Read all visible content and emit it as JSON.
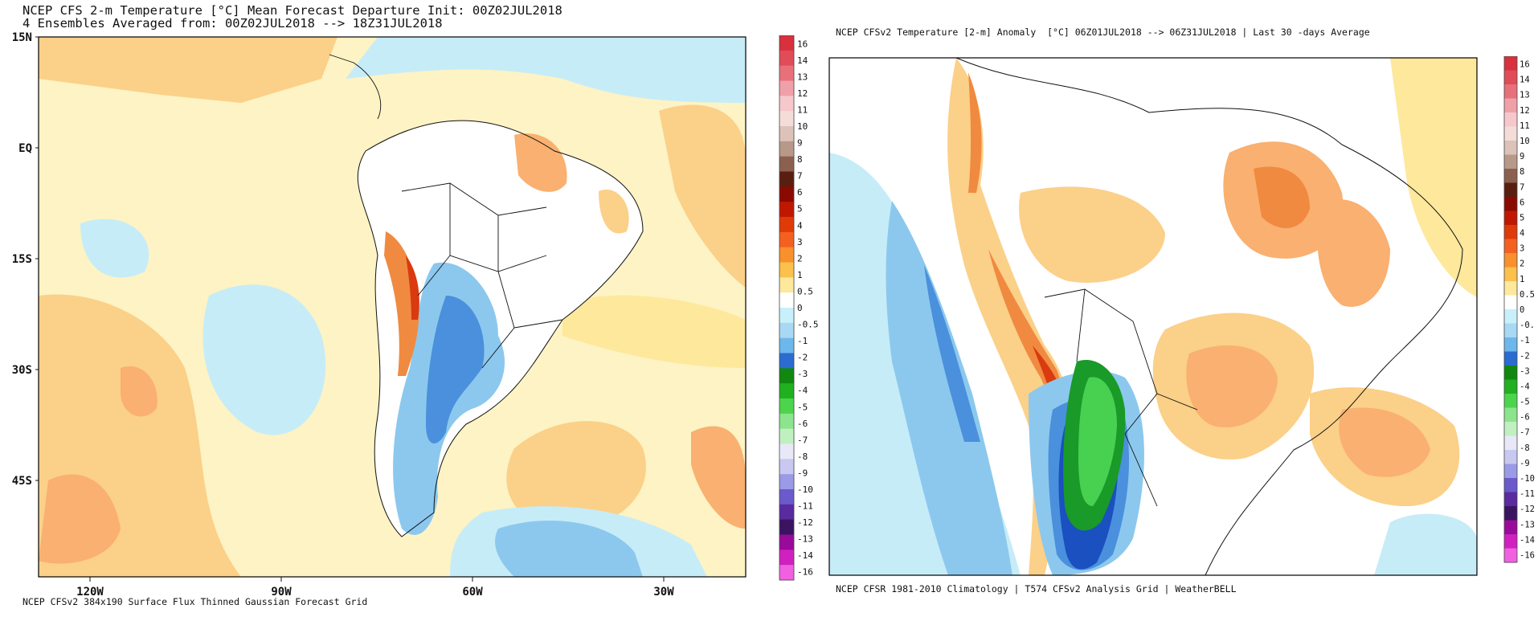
{
  "left_panel": {
    "title_line1": "NCEP CFS 2-m Temperature [°C] Mean Forecast Departure Init: 00Z02JUL2018",
    "title_line2": "4 Ensembles Averaged from: 00Z02JUL2018 --> 18Z31JUL2018",
    "footer": "NCEP CFSv2 384x190 Surface Flux Thinned Gaussian Forecast Grid",
    "lat_labels": [
      "15N",
      "EQ",
      "15S",
      "30S",
      "45S"
    ],
    "lon_labels": [
      "120W",
      "90W",
      "60W",
      "30W"
    ]
  },
  "right_panel": {
    "title": "NCEP CFSv2 Temperature [2-m] Anomaly  [°C] 06Z01JUL2018 --> 06Z31JUL2018 | Last 30 -days Average",
    "footer": "NCEP CFSR 1981-2010 Climatology | T574 CFSv2 Analysis Grid | WeatherBELL"
  },
  "colorbar_left": {
    "labels": [
      "16",
      "14",
      "13",
      "12",
      "11",
      "10",
      "9",
      "8",
      "7",
      "6",
      "5",
      "4",
      "3",
      "2",
      "1",
      "0.5",
      "0",
      "-0.5",
      "-1",
      "-2",
      "-3",
      "-4",
      "-5",
      "-6",
      "-7",
      "-8",
      "-9",
      "-10",
      "-11",
      "-12",
      "-13",
      "-14",
      "-16"
    ]
  },
  "colorbar_right": {
    "labels": [
      "16",
      "14",
      "13",
      "12",
      "11",
      "10",
      "9",
      "8",
      "7",
      "6",
      "5",
      "4",
      "3",
      "2",
      "1",
      "0.5",
      "0",
      "-0.",
      "-1",
      "-2",
      "-3",
      "-4",
      "-5",
      "-6",
      "-7",
      "-8",
      "-9",
      "-10",
      "-11",
      "-12",
      "-13",
      "-14",
      "-16"
    ]
  },
  "colorbar_colors": [
    "#d8303c",
    "#e04c58",
    "#e8707a",
    "#f0a0a8",
    "#f6c8cc",
    "#f4ddd8",
    "#dcc2b8",
    "#b89888",
    "#8c6050",
    "#5a1e10",
    "#8a0a00",
    "#c01800",
    "#e03a08",
    "#f46020",
    "#f8902c",
    "#fcc04c",
    "#fde89c",
    "#ffffff",
    "#c8f0fa",
    "#a8d8f4",
    "#6cb8ec",
    "#2c6cd0",
    "#108810",
    "#20b020",
    "#4cd44c",
    "#8ce48c",
    "#c0f0c0",
    "#e8e8f8",
    "#c8c8f0",
    "#9a9ae6",
    "#6a5acc",
    "#5a2aa0",
    "#3a1460",
    "#9a0a9a",
    "#d020c0",
    "#f060e0"
  ],
  "map_colors": {
    "ocean_base": "#fdf3c4",
    "warm_light": "#fde89c",
    "warm_mid": "#fbd088",
    "warm_strong": "#f9b070",
    "warm_deep": "#f08a40",
    "red": "#d93a10",
    "cool_light": "#c6ecf8",
    "cool_mid": "#8cc8ee",
    "cool_strong": "#4a90dc",
    "blue_deep": "#1a50c0",
    "green": "#1a9a28",
    "green_light": "#48d050"
  }
}
